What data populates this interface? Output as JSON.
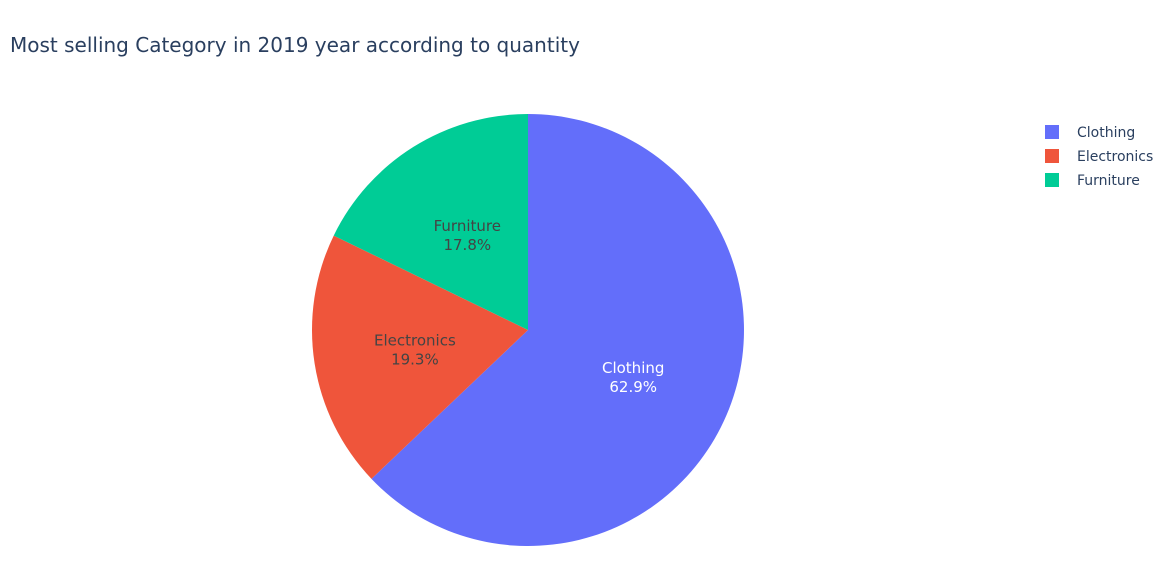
{
  "chart_data": {
    "type": "pie",
    "title": "Most selling Category in 2019 year according to quantity",
    "categories": [
      "Clothing",
      "Electronics",
      "Furniture"
    ],
    "values": [
      62.9,
      19.3,
      17.8
    ],
    "percent_labels": [
      "62.9%",
      "19.3%",
      "17.8%"
    ],
    "colors": [
      "#636efa",
      "#ef553b",
      "#00cc96"
    ],
    "label_colors": [
      "#ffffff",
      "#444444",
      "#444444"
    ],
    "direction": "clockwise",
    "start": "12 o'clock",
    "legend": {
      "placement": "top-right",
      "items": [
        "Clothing",
        "Electronics",
        "Furniture"
      ]
    }
  }
}
